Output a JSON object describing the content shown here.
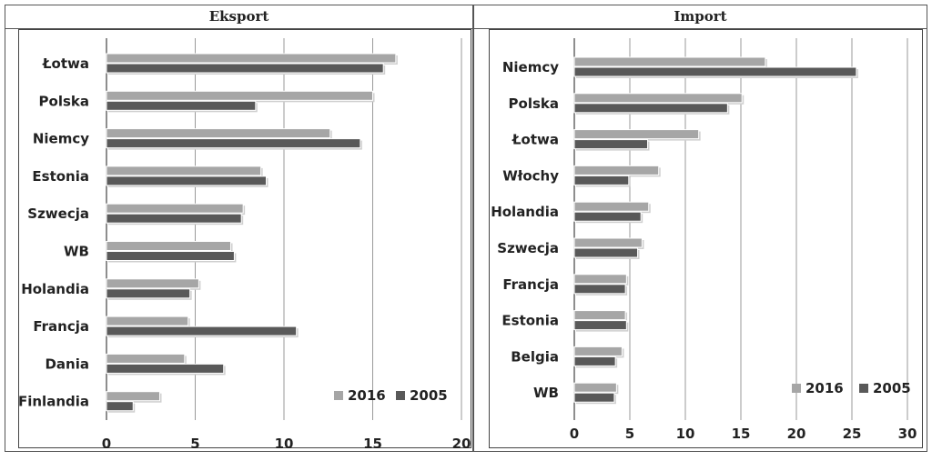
{
  "chart_data": [
    {
      "type": "bar",
      "orientation": "horizontal",
      "title": "Eksport",
      "categories": [
        "Łotwa",
        "Polska",
        "Niemcy",
        "Estonia",
        "Szwecja",
        "WB",
        "Holandia",
        "Francja",
        "Dania",
        "Finlandia"
      ],
      "series": [
        {
          "name": "2016",
          "color": "#a6a6a6",
          "values": [
            16.3,
            15.0,
            12.6,
            8.7,
            7.7,
            7.0,
            5.2,
            4.6,
            4.4,
            3.0
          ]
        },
        {
          "name": "2005",
          "color": "#595959",
          "values": [
            15.6,
            8.4,
            14.3,
            9.0,
            7.6,
            7.2,
            4.7,
            10.7,
            6.6,
            1.5
          ]
        }
      ],
      "xlim": [
        0,
        20
      ],
      "xticks": [
        "0",
        "5",
        "10",
        "15",
        "20"
      ],
      "grid": true,
      "legend_position": "bottom-right"
    },
    {
      "type": "bar",
      "orientation": "horizontal",
      "title": "Import",
      "categories": [
        "Niemcy",
        "Polska",
        "Łotwa",
        "Włochy",
        "Holandia",
        "Szwecja",
        "Francja",
        "Estonia",
        "Belgia",
        "WB"
      ],
      "series": [
        {
          "name": "2016",
          "color": "#a6a6a6",
          "values": [
            17.2,
            15.1,
            11.2,
            7.6,
            6.7,
            6.1,
            4.7,
            4.6,
            4.3,
            3.8
          ]
        },
        {
          "name": "2005",
          "color": "#595959",
          "values": [
            25.4,
            13.8,
            6.6,
            4.9,
            6.0,
            5.7,
            4.6,
            4.7,
            3.7,
            3.6
          ]
        }
      ],
      "xlim": [
        0,
        30
      ],
      "xticks": [
        "0",
        "5",
        "10",
        "15",
        "20",
        "25",
        "30"
      ],
      "grid": true,
      "legend_position": "bottom-right"
    }
  ]
}
